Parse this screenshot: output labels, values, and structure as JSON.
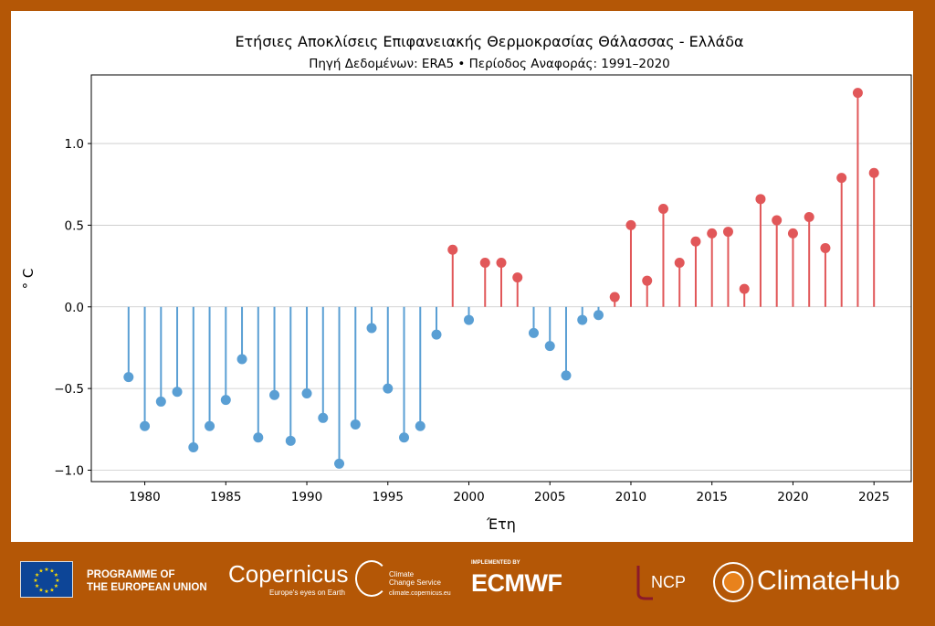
{
  "chart_data": {
    "type": "stem",
    "title": "Ετήσιες Αποκλίσεις Επιφανειακής Θερμοκρασίας Θάλασσας - Ελλάδα",
    "subtitle": "Πηγή Δεδομένων: ERA5 • Περίοδος Αναφοράς: 1991–2020",
    "xlabel": "Έτη",
    "ylabel": "$^\\circ C$",
    "ylabel_display": "° C",
    "xlim": [
      1976.7,
      2027.3
    ],
    "ylim": [
      -1.07,
      1.42
    ],
    "xticks": [
      1980,
      1985,
      1990,
      1995,
      2000,
      2005,
      2010,
      2015,
      2020,
      2025
    ],
    "yticks": [
      -1.0,
      -0.5,
      0.0,
      0.5,
      1.0
    ],
    "ytick_labels": [
      "−1.0",
      "−0.5",
      "0.0",
      "0.5",
      "1.0"
    ],
    "grid": "horizontal",
    "colors": {
      "negative": "#5a9fd4",
      "positive": "#e15759"
    },
    "x": [
      1979,
      1980,
      1981,
      1982,
      1983,
      1984,
      1985,
      1986,
      1987,
      1988,
      1989,
      1990,
      1991,
      1992,
      1993,
      1994,
      1995,
      1996,
      1997,
      1998,
      1999,
      2000,
      2001,
      2002,
      2003,
      2004,
      2005,
      2006,
      2007,
      2008,
      2009,
      2010,
      2011,
      2012,
      2013,
      2014,
      2015,
      2016,
      2017,
      2018,
      2019,
      2020,
      2021,
      2022,
      2023,
      2024,
      2025
    ],
    "values": [
      -0.43,
      -0.73,
      -0.58,
      -0.52,
      -0.86,
      -0.73,
      -0.57,
      -0.32,
      -0.8,
      -0.54,
      -0.82,
      -0.53,
      -0.68,
      -0.96,
      -0.72,
      -0.13,
      -0.5,
      -0.8,
      -0.73,
      -0.17,
      0.35,
      -0.08,
      0.27,
      0.27,
      0.18,
      -0.16,
      -0.24,
      -0.42,
      -0.08,
      -0.05,
      0.06,
      0.5,
      0.16,
      0.6,
      0.27,
      0.4,
      0.45,
      0.46,
      0.11,
      0.66,
      0.53,
      0.45,
      0.55,
      0.36,
      0.79,
      1.31,
      0.82
    ]
  },
  "footer": {
    "eu": "PROGRAMME OF THE EUROPEAN UNION",
    "eu_line1": "PROGRAMME OF",
    "eu_line2": "THE EUROPEAN UNION",
    "copernicus": "Copernicus",
    "copernicus_tagline": "Europe's eyes on Earth",
    "c3s_line1": "Climate",
    "c3s_line2": "Change Service",
    "c3s_url": "climate.copernicus.eu",
    "implemented_by": "IMPLEMENTED BY",
    "ecmwf": "ECMWF",
    "ncp": "NCP",
    "climatehub": "ClimateHub"
  }
}
